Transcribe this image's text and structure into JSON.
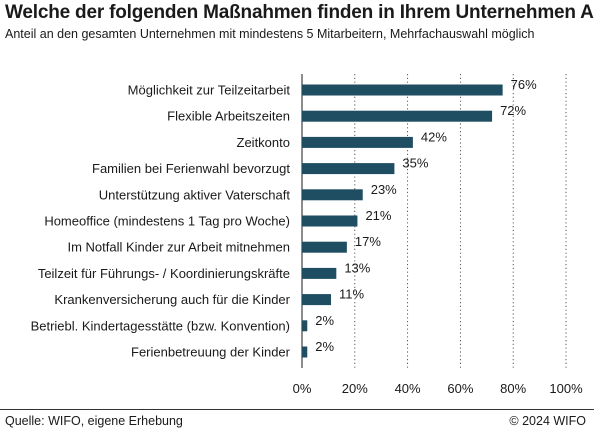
{
  "chart_data": {
    "type": "bar",
    "orientation": "horizontal",
    "title": "Welche der folgenden Maßnahmen finden in Ihrem Unternehmen Anwendung?",
    "subtitle": "Anteil an den gesamten Unternehmen mit mindestens 5 Mitarbeitern, Mehrfachauswahl möglich",
    "categories": [
      "Möglichkeit zur Teilzeitarbeit",
      "Flexible Arbeitszeiten",
      "Zeitkonto",
      "Familien bei Ferienwahl bevorzugt",
      "Unterstützung  aktiver Vaterschaft",
      "Homeoffice (mindestens 1 Tag pro Woche)",
      "Im Notfall Kinder zur Arbeit mitnehmen",
      "Teilzeit für Führungs- / Koordinierungskräfte",
      "Krankenversicherung auch für die Kinder",
      "Betriebl. Kindertagesstätte (bzw. Konvention)",
      "Ferienbetreuung der Kinder"
    ],
    "values": [
      76,
      72,
      42,
      35,
      23,
      21,
      17,
      13,
      11,
      2,
      2
    ],
    "value_labels": [
      "76%",
      "72%",
      "42%",
      "35%",
      "23%",
      "21%",
      "17%",
      "13%",
      "11%",
      "2%",
      "2%"
    ],
    "xlim": [
      0,
      100
    ],
    "xticks": [
      0,
      20,
      40,
      60,
      80,
      100
    ],
    "xtick_labels": [
      "0%",
      "20%",
      "40%",
      "60%",
      "80%",
      "100%"
    ],
    "grid": "vertical dotted",
    "legend": "none",
    "bar_color": "#1f4e63"
  },
  "footer": {
    "source": "Quelle: WIFO, eigene Erhebung",
    "copyright": "© 2024 WIFO"
  }
}
